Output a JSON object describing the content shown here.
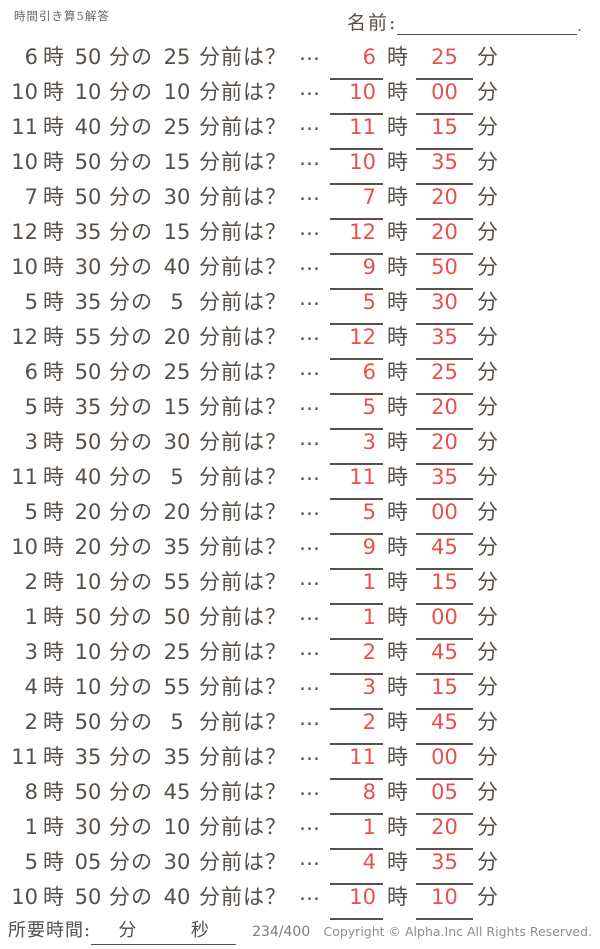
{
  "header": {
    "title": "時間引き算5解答",
    "name_label": "名前:",
    "name_suffix": "."
  },
  "labels": {
    "hour_unit": "時",
    "minute_no": "分の",
    "before_question": "分前は？",
    "ellipsis": "…",
    "minute_unit": "分"
  },
  "problems": [
    {
      "h": "6",
      "m": "50",
      "before": "25",
      "ans_h": "6",
      "ans_m": "25"
    },
    {
      "h": "10",
      "m": "10",
      "before": "10",
      "ans_h": "10",
      "ans_m": "00"
    },
    {
      "h": "11",
      "m": "40",
      "before": "25",
      "ans_h": "11",
      "ans_m": "15"
    },
    {
      "h": "10",
      "m": "50",
      "before": "15",
      "ans_h": "10",
      "ans_m": "35"
    },
    {
      "h": "7",
      "m": "50",
      "before": "30",
      "ans_h": "7",
      "ans_m": "20"
    },
    {
      "h": "12",
      "m": "35",
      "before": "15",
      "ans_h": "12",
      "ans_m": "20"
    },
    {
      "h": "10",
      "m": "30",
      "before": "40",
      "ans_h": "9",
      "ans_m": "50"
    },
    {
      "h": "5",
      "m": "35",
      "before": "5",
      "ans_h": "5",
      "ans_m": "30"
    },
    {
      "h": "12",
      "m": "55",
      "before": "20",
      "ans_h": "12",
      "ans_m": "35"
    },
    {
      "h": "6",
      "m": "50",
      "before": "25",
      "ans_h": "6",
      "ans_m": "25"
    },
    {
      "h": "5",
      "m": "35",
      "before": "15",
      "ans_h": "5",
      "ans_m": "20"
    },
    {
      "h": "3",
      "m": "50",
      "before": "30",
      "ans_h": "3",
      "ans_m": "20"
    },
    {
      "h": "11",
      "m": "40",
      "before": "5",
      "ans_h": "11",
      "ans_m": "35"
    },
    {
      "h": "5",
      "m": "20",
      "before": "20",
      "ans_h": "5",
      "ans_m": "00"
    },
    {
      "h": "10",
      "m": "20",
      "before": "35",
      "ans_h": "9",
      "ans_m": "45"
    },
    {
      "h": "2",
      "m": "10",
      "before": "55",
      "ans_h": "1",
      "ans_m": "15"
    },
    {
      "h": "1",
      "m": "50",
      "before": "50",
      "ans_h": "1",
      "ans_m": "00"
    },
    {
      "h": "3",
      "m": "10",
      "before": "25",
      "ans_h": "2",
      "ans_m": "45"
    },
    {
      "h": "4",
      "m": "10",
      "before": "55",
      "ans_h": "3",
      "ans_m": "15"
    },
    {
      "h": "2",
      "m": "50",
      "before": "5",
      "ans_h": "2",
      "ans_m": "45"
    },
    {
      "h": "11",
      "m": "35",
      "before": "35",
      "ans_h": "11",
      "ans_m": "00"
    },
    {
      "h": "8",
      "m": "50",
      "before": "45",
      "ans_h": "8",
      "ans_m": "05"
    },
    {
      "h": "1",
      "m": "30",
      "before": "10",
      "ans_h": "1",
      "ans_m": "20"
    },
    {
      "h": "5",
      "m": "05",
      "before": "30",
      "ans_h": "4",
      "ans_m": "35"
    },
    {
      "h": "10",
      "m": "50",
      "before": "40",
      "ans_h": "10",
      "ans_m": "10"
    }
  ],
  "footer": {
    "time_label": "所要時間:",
    "minutes_label": "分",
    "seconds_label": "秒",
    "page": "234/400",
    "copyright": "Copyright ©  Alpha.Inc All Rights Reserved."
  },
  "colors": {
    "answer_red": "#e8504e",
    "ink": "#57504a",
    "muted_gray": "#8e8e8e"
  }
}
